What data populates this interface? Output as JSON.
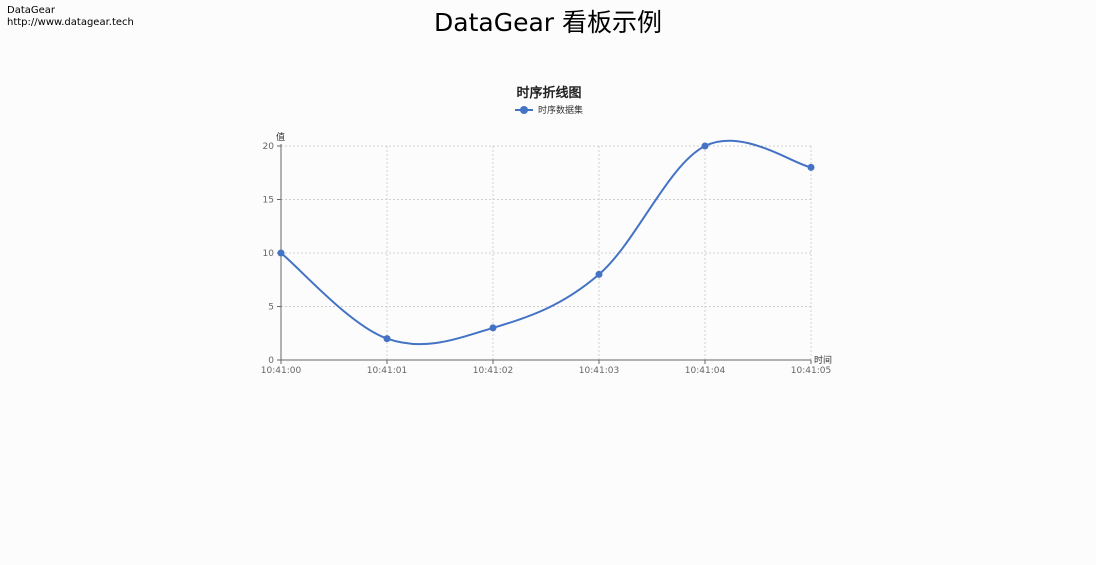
{
  "brand": {
    "name": "DataGear",
    "url": "http://www.datagear.tech"
  },
  "dashboard": {
    "title": "DataGear 看板示例"
  },
  "colors": {
    "series": "#4472c4",
    "background": "#fcfcfc",
    "grid": "#cfcfcf",
    "axis": "#666666"
  },
  "chart_data": {
    "type": "line",
    "title": "时序折线图",
    "xlabel": "时间",
    "ylabel": "值",
    "smooth": true,
    "grid": true,
    "legend_position": "top-center",
    "categories": [
      "10:41:00",
      "10:41:01",
      "10:41:02",
      "10:41:03",
      "10:41:04",
      "10:41:05"
    ],
    "ylim": [
      0,
      20
    ],
    "yticks": [
      0,
      5,
      10,
      15,
      20
    ],
    "series": [
      {
        "name": "时序数据集",
        "values": [
          10,
          2,
          3,
          8,
          20,
          18
        ]
      }
    ]
  }
}
